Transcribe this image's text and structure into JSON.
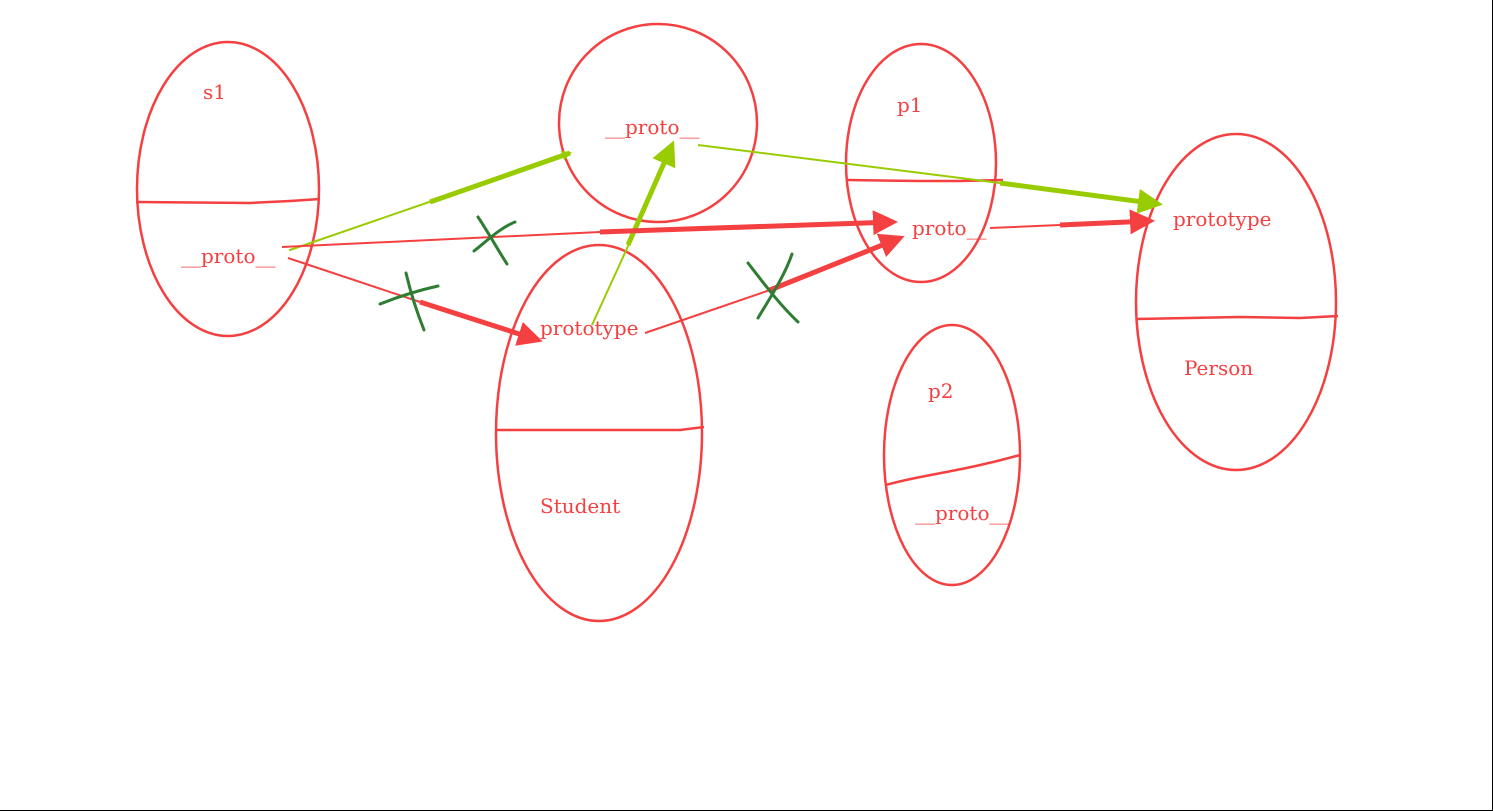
{
  "colors": {
    "red": "#f44040",
    "green": "#99cc00",
    "dark_green": "#2e7d32"
  },
  "nodes": {
    "s1": {
      "name": "s1",
      "field": "__proto__"
    },
    "object_prototype": {
      "field": "__proto__"
    },
    "student": {
      "field": "prototype",
      "name": "Student"
    },
    "p1": {
      "name": "p1",
      "field": "proto__"
    },
    "p2": {
      "name": "p2",
      "field": "__proto__"
    },
    "person": {
      "field": "prototype",
      "name": "Person"
    }
  }
}
